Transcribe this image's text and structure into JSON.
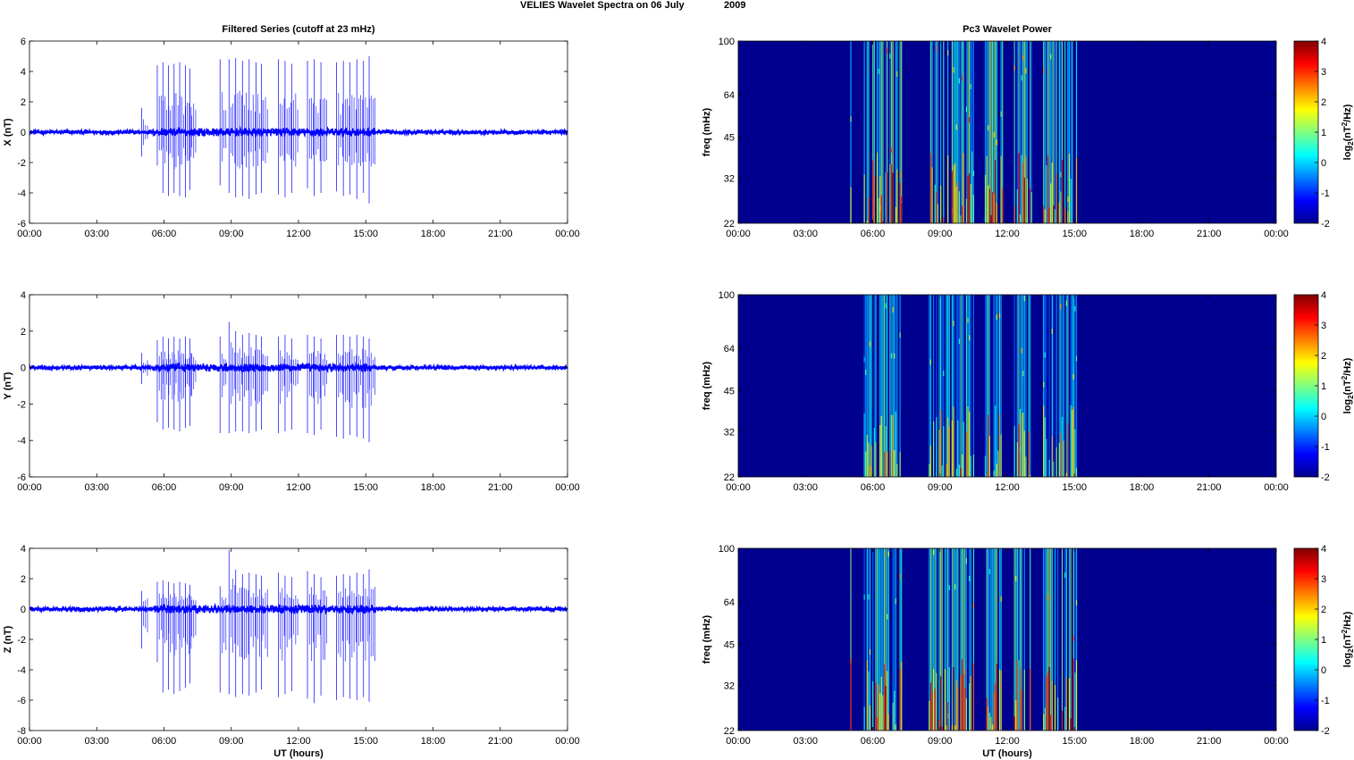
{
  "figure": {
    "suptitle_left": "VELIES Wavelet Spectra on 06 July",
    "suptitle_right": "2009"
  },
  "colors": {
    "trace": "#0000ff",
    "spectrogram_background": "#00008f",
    "colormap": "jet"
  },
  "chart_data": [
    {
      "type": "line",
      "title": "Filtered Series (cutoff at 23 mHz)",
      "xlabel": "",
      "ylabel": "X (nT)",
      "xlim": [
        0,
        24
      ],
      "ylim": [
        -6,
        6
      ],
      "xticks": [
        "00:00",
        "03:00",
        "06:00",
        "09:00",
        "12:00",
        "15:00",
        "18:00",
        "21:00",
        "00:00"
      ],
      "yticks": [
        6,
        4,
        2,
        0,
        -2,
        -4,
        -6
      ],
      "background_noise": 0.15,
      "spike_events": [
        {
          "t": 5.0,
          "pos": 1.6,
          "neg": -1.6
        },
        {
          "t": 5.7,
          "pos": 4.4,
          "neg": -2.2
        },
        {
          "t": 5.95,
          "pos": 4.6,
          "neg": -4.0
        },
        {
          "t": 6.2,
          "pos": 4.4,
          "neg": -4.2
        },
        {
          "t": 6.45,
          "pos": 4.5,
          "neg": -4.0
        },
        {
          "t": 6.7,
          "pos": 4.6,
          "neg": -4.2
        },
        {
          "t": 6.95,
          "pos": 4.4,
          "neg": -4.3
        },
        {
          "t": 7.15,
          "pos": 4.2,
          "neg": -3.8
        },
        {
          "t": 8.5,
          "pos": 4.8,
          "neg": -3.5
        },
        {
          "t": 8.9,
          "pos": 4.8,
          "neg": -4.0
        },
        {
          "t": 9.2,
          "pos": 4.9,
          "neg": -4.3
        },
        {
          "t": 9.5,
          "pos": 4.7,
          "neg": -4.2
        },
        {
          "t": 9.8,
          "pos": 4.8,
          "neg": -4.4
        },
        {
          "t": 10.1,
          "pos": 4.6,
          "neg": -4.1
        },
        {
          "t": 10.35,
          "pos": 4.5,
          "neg": -4.0
        },
        {
          "t": 11.1,
          "pos": 4.8,
          "neg": -4.1
        },
        {
          "t": 11.4,
          "pos": 4.7,
          "neg": -4.3
        },
        {
          "t": 11.7,
          "pos": 4.5,
          "neg": -4.0
        },
        {
          "t": 12.4,
          "pos": 4.7,
          "neg": -3.7
        },
        {
          "t": 12.7,
          "pos": 4.8,
          "neg": -4.2
        },
        {
          "t": 13.0,
          "pos": 4.6,
          "neg": -4.0
        },
        {
          "t": 13.7,
          "pos": 4.6,
          "neg": -3.9
        },
        {
          "t": 14.0,
          "pos": 4.7,
          "neg": -4.2
        },
        {
          "t": 14.3,
          "pos": 4.6,
          "neg": -4.1
        },
        {
          "t": 14.6,
          "pos": 4.8,
          "neg": -4.4
        },
        {
          "t": 14.9,
          "pos": 4.7,
          "neg": -4.0
        },
        {
          "t": 15.15,
          "pos": 5.0,
          "neg": -4.7
        }
      ]
    },
    {
      "type": "line",
      "title": "",
      "xlabel": "",
      "ylabel": "Y (nT)",
      "xlim": [
        0,
        24
      ],
      "ylim": [
        -6,
        4
      ],
      "xticks": [
        "00:00",
        "03:00",
        "06:00",
        "09:00",
        "12:00",
        "15:00",
        "18:00",
        "21:00",
        "00:00"
      ],
      "yticks": [
        4,
        2,
        0,
        -2,
        -4,
        -6
      ],
      "background_noise": 0.12,
      "spike_events": [
        {
          "t": 5.0,
          "pos": 0.8,
          "neg": -0.9
        },
        {
          "t": 5.7,
          "pos": 1.5,
          "neg": -3.0
        },
        {
          "t": 5.95,
          "pos": 1.7,
          "neg": -3.4
        },
        {
          "t": 6.2,
          "pos": 1.6,
          "neg": -3.3
        },
        {
          "t": 6.45,
          "pos": 1.7,
          "neg": -3.4
        },
        {
          "t": 6.7,
          "pos": 1.6,
          "neg": -3.5
        },
        {
          "t": 6.95,
          "pos": 1.7,
          "neg": -3.3
        },
        {
          "t": 7.15,
          "pos": 1.6,
          "neg": -3.2
        },
        {
          "t": 8.5,
          "pos": 1.7,
          "neg": -3.6
        },
        {
          "t": 8.9,
          "pos": 2.5,
          "neg": -3.6
        },
        {
          "t": 9.2,
          "pos": 2.0,
          "neg": -3.5
        },
        {
          "t": 9.5,
          "pos": 1.8,
          "neg": -3.5
        },
        {
          "t": 9.8,
          "pos": 1.9,
          "neg": -3.6
        },
        {
          "t": 10.1,
          "pos": 1.8,
          "neg": -3.5
        },
        {
          "t": 10.35,
          "pos": 1.7,
          "neg": -3.4
        },
        {
          "t": 11.1,
          "pos": 1.7,
          "neg": -3.6
        },
        {
          "t": 11.4,
          "pos": 1.8,
          "neg": -3.5
        },
        {
          "t": 11.7,
          "pos": 1.6,
          "neg": -3.4
        },
        {
          "t": 12.4,
          "pos": 1.8,
          "neg": -3.6
        },
        {
          "t": 12.7,
          "pos": 1.7,
          "neg": -3.7
        },
        {
          "t": 13.0,
          "pos": 1.6,
          "neg": -3.4
        },
        {
          "t": 13.7,
          "pos": 1.8,
          "neg": -3.8
        },
        {
          "t": 14.0,
          "pos": 1.8,
          "neg": -3.9
        },
        {
          "t": 14.3,
          "pos": 1.7,
          "neg": -3.7
        },
        {
          "t": 14.6,
          "pos": 1.8,
          "neg": -3.8
        },
        {
          "t": 14.9,
          "pos": 1.7,
          "neg": -3.9
        },
        {
          "t": 15.15,
          "pos": 1.6,
          "neg": -4.1
        }
      ]
    },
    {
      "type": "line",
      "title": "",
      "xlabel": "UT (hours)",
      "ylabel": "Z (nT)",
      "xlim": [
        0,
        24
      ],
      "ylim": [
        -8,
        4
      ],
      "xticks": [
        "00:00",
        "03:00",
        "06:00",
        "09:00",
        "12:00",
        "15:00",
        "18:00",
        "21:00",
        "00:00"
      ],
      "yticks": [
        4,
        2,
        0,
        -2,
        -4,
        -6,
        -8
      ],
      "background_noise": 0.15,
      "spike_events": [
        {
          "t": 5.0,
          "pos": 1.2,
          "neg": -2.6
        },
        {
          "t": 5.7,
          "pos": 1.8,
          "neg": -3.5
        },
        {
          "t": 5.95,
          "pos": 1.9,
          "neg": -5.5
        },
        {
          "t": 6.2,
          "pos": 1.8,
          "neg": -5.3
        },
        {
          "t": 6.45,
          "pos": 1.7,
          "neg": -5.6
        },
        {
          "t": 6.7,
          "pos": 1.8,
          "neg": -5.4
        },
        {
          "t": 6.95,
          "pos": 1.7,
          "neg": -5.2
        },
        {
          "t": 7.15,
          "pos": 1.6,
          "neg": -4.9
        },
        {
          "t": 8.5,
          "pos": 1.5,
          "neg": -5.5
        },
        {
          "t": 8.9,
          "pos": 3.9,
          "neg": -5.6
        },
        {
          "t": 9.2,
          "pos": 2.6,
          "neg": -5.8
        },
        {
          "t": 9.5,
          "pos": 2.3,
          "neg": -5.6
        },
        {
          "t": 9.8,
          "pos": 2.4,
          "neg": -5.7
        },
        {
          "t": 10.1,
          "pos": 2.3,
          "neg": -5.5
        },
        {
          "t": 10.35,
          "pos": 2.2,
          "neg": -5.3
        },
        {
          "t": 11.1,
          "pos": 2.4,
          "neg": -5.8
        },
        {
          "t": 11.4,
          "pos": 2.2,
          "neg": -5.6
        },
        {
          "t": 11.7,
          "pos": 2.1,
          "neg": -5.4
        },
        {
          "t": 12.4,
          "pos": 2.5,
          "neg": -5.9
        },
        {
          "t": 12.7,
          "pos": 2.3,
          "neg": -6.2
        },
        {
          "t": 13.0,
          "pos": 2.1,
          "neg": -5.7
        },
        {
          "t": 13.7,
          "pos": 2.2,
          "neg": -6.0
        },
        {
          "t": 14.0,
          "pos": 2.3,
          "neg": -5.8
        },
        {
          "t": 14.3,
          "pos": 2.2,
          "neg": -5.9
        },
        {
          "t": 14.6,
          "pos": 2.4,
          "neg": -6.0
        },
        {
          "t": 14.9,
          "pos": 2.3,
          "neg": -5.8
        },
        {
          "t": 15.15,
          "pos": 2.6,
          "neg": -6.1
        }
      ]
    },
    {
      "type": "heatmap",
      "title": "Pc3 Wavelet Power",
      "xlabel": "",
      "ylabel": "freq (mHz)",
      "xlim": [
        0,
        24
      ],
      "ylim": [
        22,
        100
      ],
      "yscale": "log",
      "xticks": [
        "00:00",
        "03:00",
        "06:00",
        "09:00",
        "12:00",
        "15:00",
        "18:00",
        "21:00",
        "00:00"
      ],
      "yticks": [
        100,
        64,
        45,
        32,
        22
      ],
      "colorbar": {
        "label": "log2(nT^2/Hz)",
        "ticks": [
          4,
          3,
          2,
          1,
          0,
          -1,
          -2
        ],
        "range": [
          -2,
          4
        ]
      },
      "activity_windows": [
        [
          5.0,
          5.05
        ],
        [
          5.6,
          7.3
        ],
        [
          8.5,
          10.5
        ],
        [
          11.0,
          11.8
        ],
        [
          12.3,
          13.1
        ],
        [
          13.6,
          15.1
        ]
      ],
      "peak_level": 4.0
    },
    {
      "type": "heatmap",
      "title": "",
      "xlabel": "",
      "ylabel": "freq (mHz)",
      "xlim": [
        0,
        24
      ],
      "ylim": [
        22,
        100
      ],
      "yscale": "log",
      "xticks": [
        "00:00",
        "03:00",
        "06:00",
        "09:00",
        "12:00",
        "15:00",
        "18:00",
        "21:00",
        "00:00"
      ],
      "yticks": [
        100,
        64,
        45,
        32,
        22
      ],
      "colorbar": {
        "label": "log2(nT^2/Hz)",
        "ticks": [
          4,
          3,
          2,
          1,
          0,
          -1,
          -2
        ],
        "range": [
          -2,
          4
        ]
      },
      "activity_windows": [
        [
          5.6,
          7.3
        ],
        [
          8.5,
          10.5
        ],
        [
          11.0,
          11.8
        ],
        [
          12.3,
          13.1
        ],
        [
          13.6,
          15.1
        ]
      ],
      "peak_level": 3.2
    },
    {
      "type": "heatmap",
      "title": "",
      "xlabel": "UT (hours)",
      "ylabel": "freq (mHz)",
      "xlim": [
        0,
        24
      ],
      "ylim": [
        22,
        100
      ],
      "yscale": "log",
      "xticks": [
        "00:00",
        "03:00",
        "06:00",
        "09:00",
        "12:00",
        "15:00",
        "18:00",
        "21:00",
        "00:00"
      ],
      "yticks": [
        100,
        64,
        45,
        32,
        22
      ],
      "colorbar": {
        "label": "log2(nT^2/Hz)",
        "ticks": [
          4,
          3,
          2,
          1,
          0,
          -1,
          -2
        ],
        "range": [
          -2,
          4
        ]
      },
      "activity_windows": [
        [
          5.0,
          5.05
        ],
        [
          5.6,
          7.3
        ],
        [
          8.5,
          10.5
        ],
        [
          11.0,
          11.8
        ],
        [
          12.3,
          13.1
        ],
        [
          13.6,
          15.1
        ]
      ],
      "peak_level": 4.0
    }
  ]
}
